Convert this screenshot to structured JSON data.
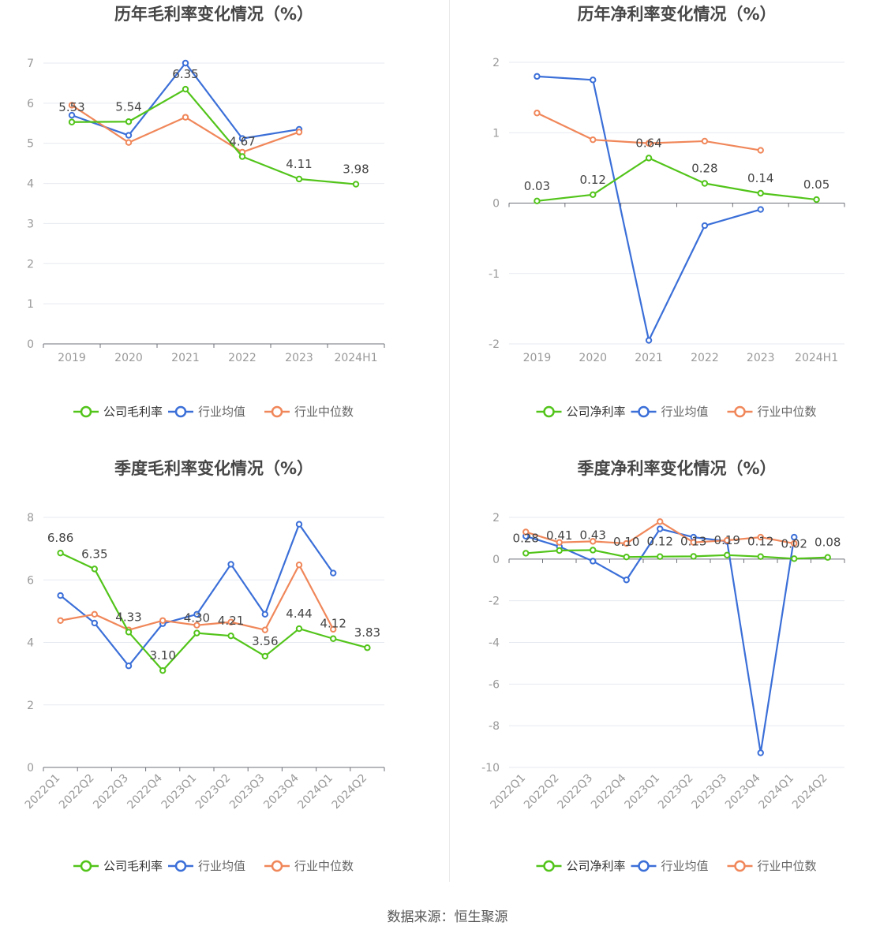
{
  "colors": {
    "company": "#52c41a",
    "industry_avg": "#3b6fd8",
    "industry_median": "#f0875a",
    "grid": "#e6e9f0",
    "axis": "#6e7079",
    "tick_label": "#999999",
    "title": "#464646",
    "data_label": "#444444"
  },
  "source": "数据来源：恒生聚源",
  "chart_data": [
    {
      "type": "line",
      "title": "历年毛利率变化情况（%）",
      "categories": [
        "2019",
        "2020",
        "2021",
        "2022",
        "2023",
        "2024H1"
      ],
      "ylim": [
        0,
        7
      ],
      "yticks": [
        "0",
        "1",
        "2",
        "3",
        "4",
        "5",
        "6",
        "7"
      ],
      "rotate_labels": false,
      "legend": [
        "公司毛利率",
        "行业均值",
        "行业中位数"
      ],
      "series": [
        {
          "name": "公司毛利率",
          "values": [
            5.53,
            5.54,
            6.35,
            4.67,
            4.11,
            3.98
          ],
          "labels": [
            "5.53",
            "5.54",
            "6.35",
            "4.67",
            "4.11",
            "3.98"
          ]
        },
        {
          "name": "行业均值",
          "values": [
            5.7,
            5.2,
            7.0,
            5.12,
            5.35,
            null
          ]
        },
        {
          "name": "行业中位数",
          "values": [
            5.95,
            5.02,
            5.65,
            4.78,
            5.28,
            null
          ]
        }
      ]
    },
    {
      "type": "line",
      "title": "历年净利率变化情况（%）",
      "categories": [
        "2019",
        "2020",
        "2021",
        "2022",
        "2023",
        "2024H1"
      ],
      "ylim": [
        -2,
        2
      ],
      "yticks": [
        "-2",
        "-1",
        "0",
        "1",
        "2"
      ],
      "rotate_labels": false,
      "legend": [
        "公司净利率",
        "行业均值",
        "行业中位数"
      ],
      "series": [
        {
          "name": "公司净利率",
          "values": [
            0.03,
            0.12,
            0.64,
            0.28,
            0.14,
            0.05
          ],
          "labels": [
            "0.03",
            "0.12",
            "0.64",
            "0.28",
            "0.14",
            "0.05"
          ]
        },
        {
          "name": "行业均值",
          "values": [
            1.8,
            1.75,
            -1.95,
            -0.32,
            -0.09,
            null
          ]
        },
        {
          "name": "行业中位数",
          "values": [
            1.28,
            0.9,
            0.85,
            0.88,
            0.75,
            null
          ]
        }
      ]
    },
    {
      "type": "line",
      "title": "季度毛利率变化情况（%）",
      "categories": [
        "2022Q1",
        "2022Q2",
        "2022Q3",
        "2022Q4",
        "2023Q1",
        "2023Q2",
        "2023Q3",
        "2023Q4",
        "2024Q1",
        "2024Q2"
      ],
      "ylim": [
        0,
        8
      ],
      "yticks": [
        "0",
        "2",
        "4",
        "6",
        "8"
      ],
      "rotate_labels": true,
      "legend": [
        "公司毛利率",
        "行业均值",
        "行业中位数"
      ],
      "series": [
        {
          "name": "公司毛利率",
          "values": [
            6.86,
            6.35,
            4.33,
            3.1,
            4.3,
            4.21,
            3.56,
            4.44,
            4.12,
            3.83
          ],
          "labels": [
            "6.86",
            "6.35",
            "4.33",
            "3.10",
            "4.30",
            "4.21",
            "3.56",
            "4.44",
            "4.12",
            "3.83"
          ]
        },
        {
          "name": "行业均值",
          "values": [
            5.5,
            4.62,
            3.25,
            4.6,
            4.9,
            6.5,
            4.9,
            7.78,
            6.22,
            null
          ]
        },
        {
          "name": "行业中位数",
          "values": [
            4.7,
            4.9,
            4.4,
            4.7,
            4.55,
            4.65,
            4.4,
            6.48,
            4.42,
            null
          ]
        }
      ]
    },
    {
      "type": "line",
      "title": "季度净利率变化情况（%）",
      "categories": [
        "2022Q1",
        "2022Q2",
        "2022Q3",
        "2022Q4",
        "2023Q1",
        "2023Q2",
        "2023Q3",
        "2023Q4",
        "2024Q1",
        "2024Q2"
      ],
      "ylim": [
        -10,
        2
      ],
      "yticks": [
        "-10",
        "-8",
        "-6",
        "-4",
        "-2",
        "0",
        "2"
      ],
      "rotate_labels": true,
      "legend": [
        "公司净利率",
        "行业均值",
        "行业中位数"
      ],
      "series": [
        {
          "name": "公司净利率",
          "values": [
            0.28,
            0.41,
            0.43,
            0.1,
            0.12,
            0.13,
            0.19,
            0.12,
            0.02,
            0.08
          ],
          "labels": [
            "0.28",
            "0.41",
            "0.43",
            "0.10",
            "0.12",
            "0.13",
            "0.19",
            "0.12",
            "0.02",
            "0.08"
          ]
        },
        {
          "name": "行业均值",
          "values": [
            1.1,
            0.6,
            -0.1,
            -1.0,
            1.45,
            1.05,
            0.85,
            -9.3,
            1.05,
            null
          ]
        },
        {
          "name": "行业中位数",
          "values": [
            1.3,
            0.8,
            0.85,
            0.75,
            1.8,
            0.8,
            0.9,
            1.05,
            0.75,
            null
          ]
        }
      ]
    }
  ]
}
